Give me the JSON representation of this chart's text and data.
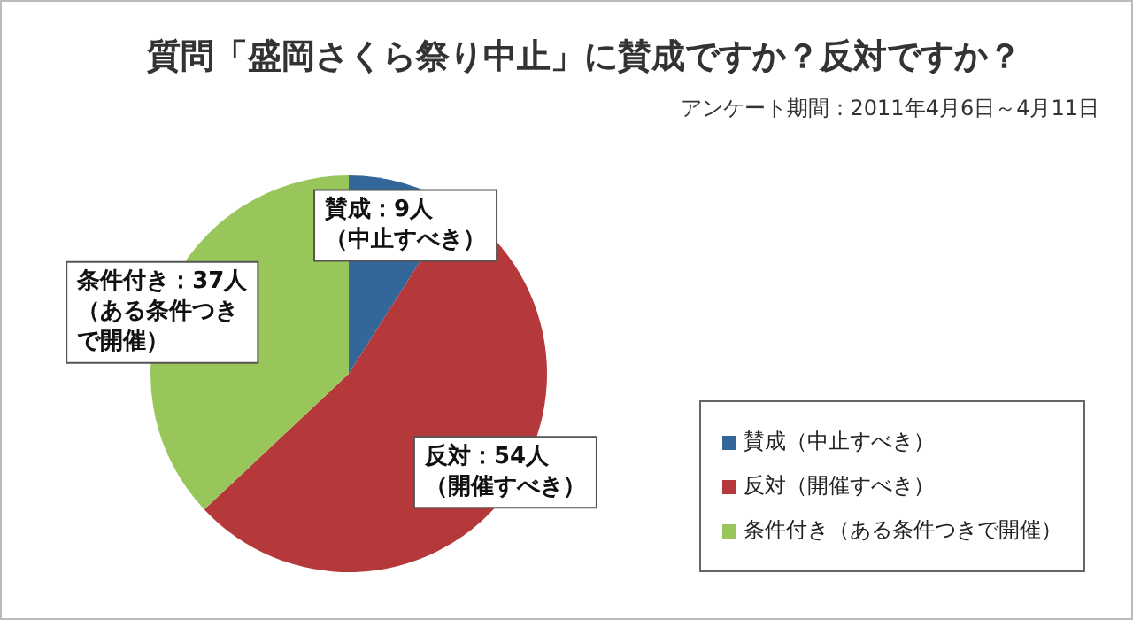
{
  "chart_data": {
    "type": "pie",
    "title": "質問「盛岡さくら祭り中止」に賛成ですか？反対ですか？",
    "subtitle": "アンケート期間：2011年4月6日～4月11日",
    "categories": [
      "賛成（中止すべき）",
      "反対（開催すべき）",
      "条件付き（ある条件つきで開催）"
    ],
    "values": [
      9,
      54,
      37
    ],
    "colors": [
      "#336699",
      "#b5393a",
      "#99c65a"
    ],
    "value_labels": [
      "賛成：9人（中止すべき）",
      "反対：54人（開催すべき）",
      "条件付き：37人（ある条件つきで開催）"
    ],
    "legend": "bottom right"
  }
}
